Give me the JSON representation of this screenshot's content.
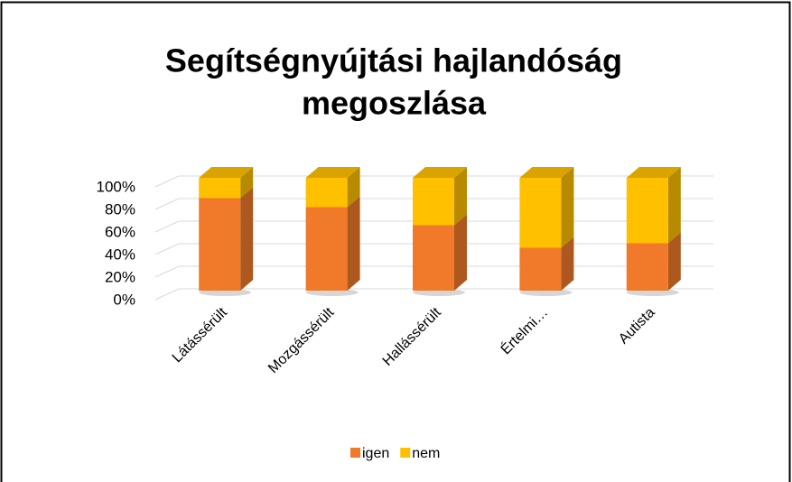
{
  "chart_data": {
    "type": "bar",
    "stacked": true,
    "title_lines": [
      "Segítségnyújtási hajlandóság",
      "megoszlása"
    ],
    "categories": [
      "Látássérült",
      "Mozgássérült",
      "Hallássérült",
      "Értelmi…",
      "Autista"
    ],
    "series": [
      {
        "name": "igen",
        "color": "#f07a2a",
        "values": [
          82,
          74,
          58,
          38,
          42
        ]
      },
      {
        "name": "nem",
        "color": "#ffc000",
        "values": [
          18,
          26,
          42,
          62,
          58
        ]
      }
    ],
    "ylim": [
      0,
      100
    ],
    "yticks": [
      {
        "value": 0,
        "label": "0%"
      },
      {
        "value": 20,
        "label": "20%"
      },
      {
        "value": 40,
        "label": "40%"
      },
      {
        "value": 60,
        "label": "60%"
      },
      {
        "value": 80,
        "label": "80%"
      },
      {
        "value": 100,
        "label": "100%"
      }
    ],
    "grid": true,
    "legend": "bottom"
  }
}
